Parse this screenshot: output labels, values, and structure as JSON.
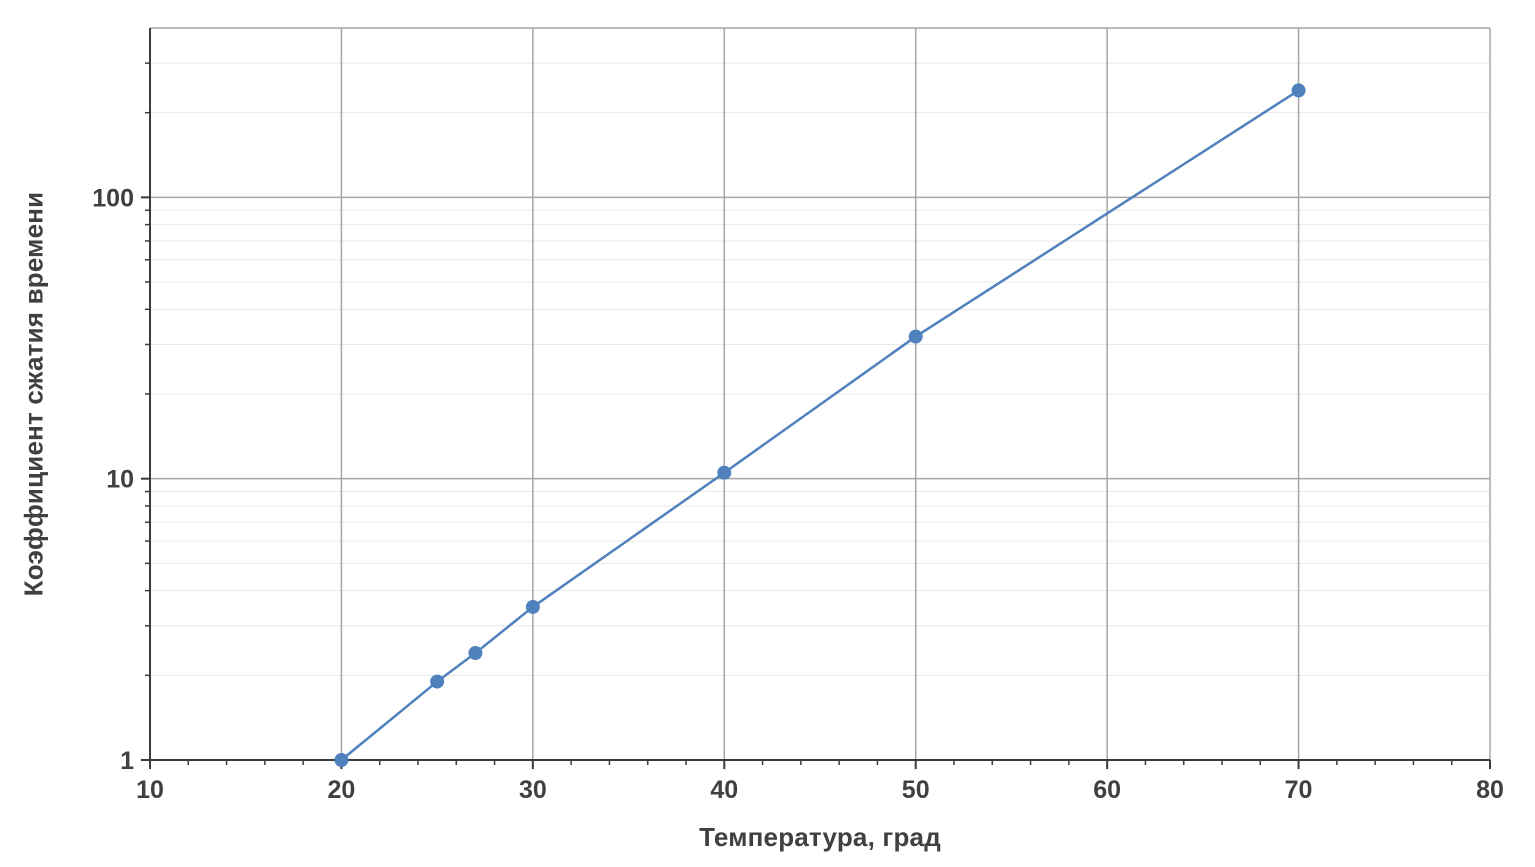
{
  "chart_data": {
    "type": "line",
    "title": "",
    "xlabel": "Температура, град",
    "ylabel": "Коэффициент сжатия времени",
    "x_scale": "linear",
    "y_scale": "log",
    "xlim": [
      10,
      80
    ],
    "ylim": [
      1,
      400
    ],
    "x_ticks": [
      10,
      20,
      30,
      40,
      50,
      60,
      70,
      80
    ],
    "x_minor_step": 2,
    "y_ticks": [
      1,
      10,
      100
    ],
    "grid": {
      "major": true,
      "minor": true
    },
    "legend": "none",
    "series": [
      {
        "name": "Коэффициент сжатия времени",
        "color": "#4F81BD",
        "marker": "circle",
        "marker_size": 7,
        "x": [
          20,
          25,
          27,
          30,
          40,
          50,
          70
        ],
        "y": [
          1,
          1.9,
          2.4,
          3.5,
          10.5,
          32,
          240
        ]
      }
    ],
    "colors": {
      "major_grid": "#A6A6A6",
      "minor_grid": "#E9E9E9",
      "plot_border": "#A6A6A6",
      "axis": "#3B3B3B",
      "tick_text": "#404040",
      "background": "#FFFFFF"
    }
  }
}
